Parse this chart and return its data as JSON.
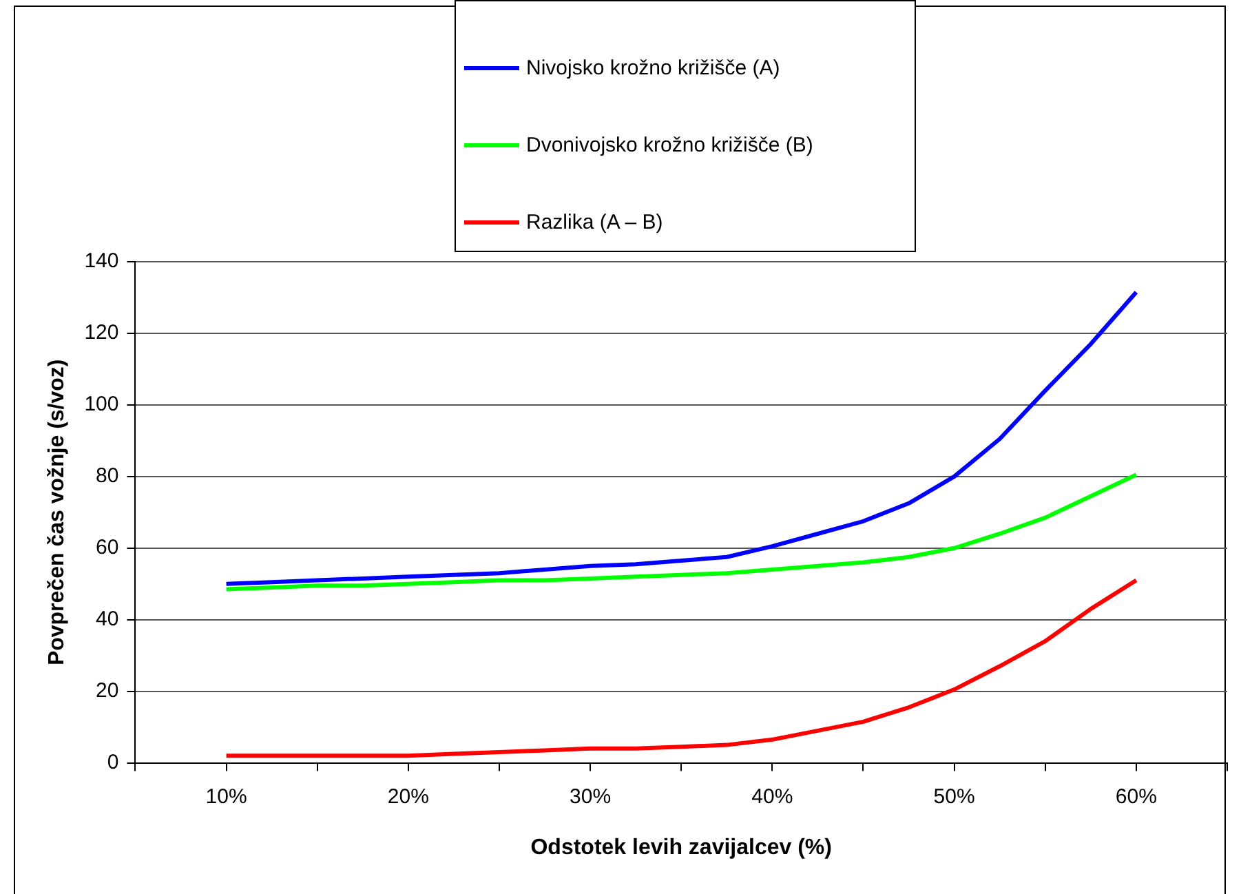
{
  "chart_data": {
    "type": "line",
    "xlabel": "Odstotek levih zavijalcev (%)",
    "ylabel": "Povprečen čas vožnje (s/voz)",
    "x": [
      10,
      12.5,
      15,
      17.5,
      20,
      22.5,
      25,
      27.5,
      30,
      32.5,
      35,
      37.5,
      40,
      42.5,
      45,
      47.5,
      50,
      52.5,
      55,
      57.5,
      60
    ],
    "xlim": [
      5,
      65
    ],
    "xticks": [
      {
        "value": 5,
        "label": null
      },
      {
        "value": 10,
        "label": "10%"
      },
      {
        "value": 15,
        "label": null
      },
      {
        "value": 20,
        "label": "20%"
      },
      {
        "value": 25,
        "label": null
      },
      {
        "value": 30,
        "label": "30%"
      },
      {
        "value": 35,
        "label": null
      },
      {
        "value": 40,
        "label": "40%"
      },
      {
        "value": 45,
        "label": null
      },
      {
        "value": 50,
        "label": "50%"
      },
      {
        "value": 55,
        "label": null
      },
      {
        "value": 60,
        "label": "60%"
      },
      {
        "value": 65,
        "label": null
      }
    ],
    "ylim": [
      0,
      140
    ],
    "yticks": [
      0,
      20,
      40,
      60,
      80,
      100,
      120,
      140
    ],
    "grid": "y",
    "legend": "top",
    "marker": "none",
    "line_style": "solid",
    "series": [
      {
        "name": "Nivojsko krožno križišče (A)",
        "color": "#0000ff",
        "values": [
          50,
          50.5,
          51,
          51.5,
          52,
          52.5,
          53,
          54,
          55,
          55.5,
          56.5,
          57.5,
          60.5,
          64,
          67.5,
          72.5,
          80,
          90.5,
          104,
          117,
          131.5
        ]
      },
      {
        "name": "Dvonivojsko krožno križišče (B)",
        "color": "#00ff00",
        "values": [
          48.5,
          49,
          49.5,
          49.5,
          50,
          50.5,
          51,
          51,
          51.5,
          52,
          52.5,
          53,
          54,
          55,
          56,
          57.5,
          60,
          64,
          68.5,
          74.5,
          80.5
        ]
      },
      {
        "name": "Razlika (A – B)",
        "color": "#ff0000",
        "values": [
          2,
          2,
          2,
          2,
          2,
          2.5,
          3,
          3.5,
          4,
          4,
          4.5,
          5,
          6.5,
          9,
          11.5,
          15.5,
          20.5,
          27,
          34,
          43,
          51
        ]
      }
    ]
  }
}
